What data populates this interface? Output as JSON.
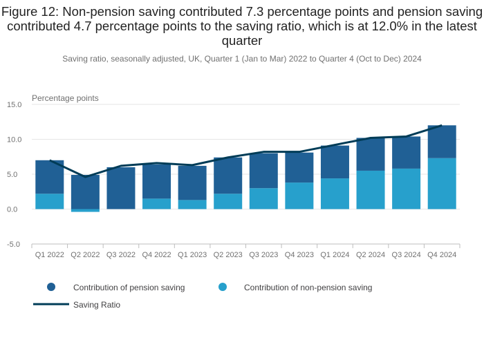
{
  "chart_data": {
    "type": "bar",
    "stacked": true,
    "title": "Figure 12: Non-pension saving contributed 7.3 percentage points and pension saving contributed 4.7 percentage points to the saving ratio, which is at 12.0% in the latest quarter",
    "subtitle": "Saving ratio, seasonally adjusted, UK, Quarter 1 (Jan to Mar) 2022 to Quarter 4 (Oct to Dec) 2024",
    "ylabel": "Percentage points",
    "ylim": [
      -5,
      15
    ],
    "yticks": [
      "15.0",
      "10.0",
      "5.0",
      "0.0",
      "-5.0"
    ],
    "grid": true,
    "legend_position": "bottom",
    "categories": [
      "Q1 2022",
      "Q2 2022",
      "Q3 2022",
      "Q4 2022",
      "Q1 2023",
      "Q2 2023",
      "Q3 2023",
      "Q4 2023",
      "Q1 2024",
      "Q2 2024",
      "Q3 2024",
      "Q4 2024"
    ],
    "series": [
      {
        "name": "Contribution of pension saving",
        "type": "bar",
        "color": "#206095",
        "values": [
          4.8,
          4.9,
          6.0,
          4.9,
          4.9,
          5.2,
          5.0,
          4.3,
          4.7,
          4.7,
          4.6,
          4.7
        ]
      },
      {
        "name": "Contribution of non-pension saving",
        "type": "bar",
        "color": "#27a0cc",
        "values": [
          2.2,
          -0.4,
          0.0,
          1.5,
          1.3,
          2.2,
          3.0,
          3.8,
          4.4,
          5.5,
          5.8,
          7.3
        ]
      },
      {
        "name": "Saving Ratio",
        "type": "line",
        "color": "#003c57",
        "values": [
          7.0,
          4.6,
          6.2,
          6.6,
          6.3,
          7.4,
          8.2,
          8.2,
          9.2,
          10.2,
          10.4,
          12.0
        ]
      }
    ]
  }
}
